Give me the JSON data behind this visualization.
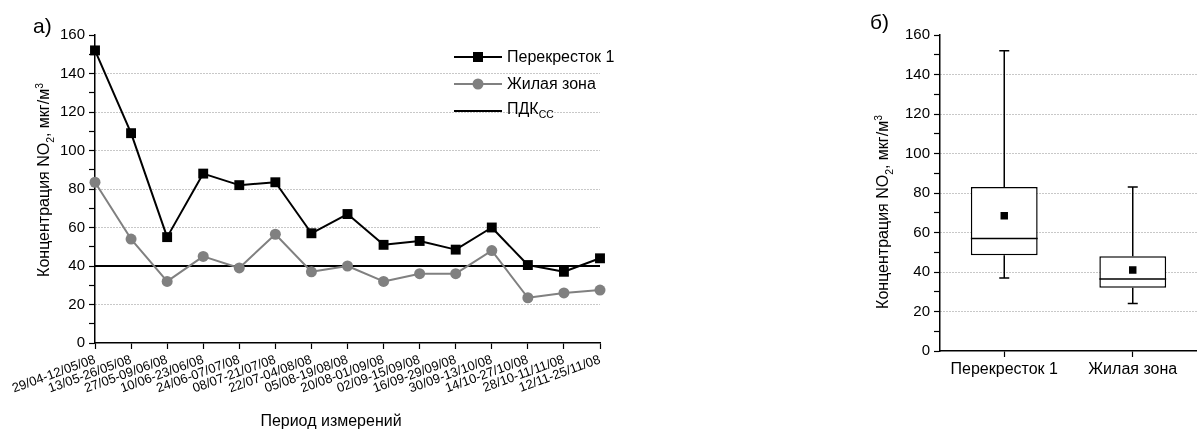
{
  "chart_data": [
    {
      "type": "line",
      "title": "а)",
      "xlabel": "Период измерений",
      "ylabel": "Концентрация NO$_{2}$, мкг/м$^{3}$",
      "categories": [
        "29/04-12/05/08",
        "13/05-26/05/08",
        "27/05-09/06/08",
        "10/06-23/06/08",
        "24/06-07/07/08",
        "08/07-21/07/08",
        "22/07-04/08/08",
        "05/08-19/08/08",
        "20/08-01/09/08",
        "02/09-15/09/08",
        "16/09-29/09/08",
        "30/09-13/10/08",
        "14/10-27/10/08",
        "28/10-11/11/08",
        "12/11-25/11/08"
      ],
      "series": [
        {
          "name": "Перекресток 1",
          "color": "#000000",
          "marker": "square",
          "values": [
            152,
            109,
            55,
            88,
            82,
            83.5,
            57,
            67,
            51,
            53,
            48.5,
            60,
            40.5,
            37,
            44
          ]
        },
        {
          "name": "Жилая зона",
          "color": "#808080",
          "marker": "circle",
          "values": [
            83.5,
            54,
            32,
            45,
            39,
            56.5,
            37,
            40,
            32,
            36,
            36,
            48,
            23.5,
            26,
            27.5
          ]
        }
      ],
      "ylim": [
        0,
        160
      ],
      "yticks": [
        0,
        {
          "value": 10,
          "label": null
        },
        20,
        {
          "value": 30,
          "label": null
        },
        40,
        {
          "value": 50,
          "label": null
        },
        60,
        {
          "value": 70,
          "label": null
        },
        80,
        {
          "value": 90,
          "label": null
        },
        100,
        {
          "value": 110,
          "label": null
        },
        120,
        {
          "value": 130,
          "label": null
        },
        140,
        {
          "value": 150,
          "label": null
        },
        160
      ],
      "grid": "y",
      "legend": "top right",
      "ref_lines": [
        {
          "axis": "y",
          "value": 40,
          "label": "ПДК$_{СС}$",
          "color": "#000000"
        }
      ]
    },
    {
      "type": "box",
      "title": "б)",
      "ylabel": "Концентрация NO$_{2}$, мкг/м$^{3}$",
      "categories": [
        "Перекресток 1",
        "Жилая зона"
      ],
      "series": [
        {
          "color": "#000000",
          "boxes": [
            {
              "low": 37,
              "q1": 48.5,
              "median": 57,
              "q3": 83,
              "high": 152,
              "mean": 68.5
            },
            {
              "low": 24,
              "q1": 32,
              "median": 36.5,
              "q3": 48,
              "high": 83,
              "mean": 41
            }
          ]
        }
      ],
      "ylim": [
        0,
        160
      ],
      "yticks": [
        0,
        {
          "value": 10,
          "label": null
        },
        20,
        {
          "value": 30,
          "label": null
        },
        40,
        {
          "value": 50,
          "label": null
        },
        60,
        {
          "value": 70,
          "label": null
        },
        80,
        {
          "value": 90,
          "label": null
        },
        100,
        {
          "value": 110,
          "label": null
        },
        120,
        {
          "value": 130,
          "label": null
        },
        140,
        {
          "value": 150,
          "label": null
        },
        160
      ],
      "grid": "y",
      "marker": "square"
    }
  ]
}
